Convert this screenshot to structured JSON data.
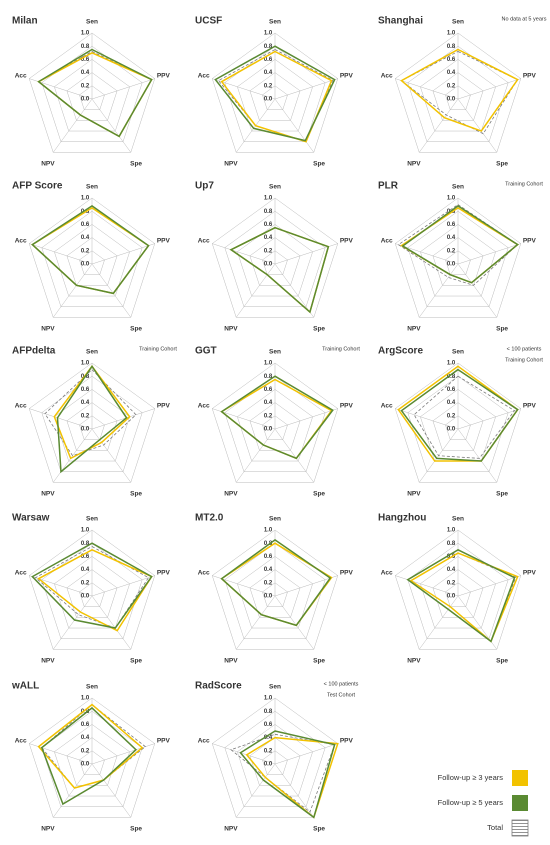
{
  "radar": {
    "categories": [
      "Sen",
      "PPV",
      "Spe",
      "NPV",
      "Acc"
    ],
    "rlim": [
      0,
      1
    ],
    "rticks": [
      {
        "value": 0,
        "label": "0.0"
      },
      0.2,
      0.4,
      0.6,
      0.8,
      {
        "value": 1,
        "label": "1.0"
      }
    ]
  },
  "legend": [
    {
      "name": "Follow-up ≥ 3 years",
      "color": "#f2c200",
      "dashed": false
    },
    {
      "name": "Follow-up ≥ 5 years",
      "color": "#5a8a32",
      "dashed": false
    },
    {
      "name": "Total",
      "color": "#7a7a7a",
      "dashed": true
    }
  ],
  "chart_data": [
    {
      "type": "radar",
      "title": "Milan",
      "series": [
        [
          0.7,
          0.95,
          0.7,
          0.3,
          0.85
        ],
        [
          0.75,
          0.95,
          0.7,
          0.3,
          0.85
        ],
        [
          0.72,
          0.95,
          0.7,
          0.3,
          0.85
        ]
      ]
    },
    {
      "type": "radar",
      "title": "UCSF",
      "series": [
        [
          0.72,
          0.9,
          0.8,
          0.5,
          0.85
        ],
        [
          0.8,
          0.95,
          0.78,
          0.55,
          0.95
        ],
        [
          0.75,
          0.92,
          0.8,
          0.5,
          0.9
        ]
      ]
    },
    {
      "type": "radar",
      "title": "Shanghai",
      "notes": [
        "No data at 5 years"
      ],
      "series": [
        [
          0.75,
          0.95,
          0.6,
          0.35,
          0.9
        ],
        null,
        [
          0.72,
          0.95,
          0.65,
          0.3,
          0.9
        ]
      ]
    },
    {
      "type": "radar",
      "title": "AFP Score",
      "series": [
        [
          0.85,
          0.9,
          0.55,
          0.4,
          0.95
        ],
        [
          0.88,
          0.9,
          0.55,
          0.4,
          0.95
        ],
        [
          0.85,
          0.9,
          0.55,
          0.4,
          0.95
        ]
      ]
    },
    {
      "type": "radar",
      "title": "Up7",
      "series": [
        [
          0.55,
          0.85,
          0.9,
          0.2,
          0.7
        ],
        [
          0.55,
          0.85,
          0.9,
          0.2,
          0.7
        ],
        [
          0.55,
          0.85,
          0.9,
          0.2,
          0.7
        ]
      ]
    },
    {
      "type": "radar",
      "title": "PLR",
      "notes": [
        "Training Cohort"
      ],
      "series": [
        [
          0.85,
          0.95,
          0.35,
          0.2,
          0.9
        ],
        [
          0.88,
          0.95,
          0.35,
          0.2,
          0.88
        ],
        [
          0.9,
          0.95,
          0.4,
          0.25,
          0.95
        ]
      ]
    },
    {
      "type": "radar",
      "title": "AFPdelta",
      "notes": [
        "Training Cohort"
      ],
      "series": [
        [
          0.95,
          0.6,
          0.25,
          0.55,
          0.6
        ],
        [
          0.95,
          0.55,
          0.2,
          0.8,
          0.55
        ],
        [
          0.9,
          0.7,
          0.3,
          0.5,
          0.75
        ]
      ]
    },
    {
      "type": "radar",
      "title": "GGT",
      "notes": [
        "Training Cohort"
      ],
      "series": [
        [
          0.75,
          0.9,
          0.55,
          0.3,
          0.85
        ],
        [
          0.8,
          0.92,
          0.55,
          0.3,
          0.85
        ],
        [
          0.75,
          0.9,
          0.55,
          0.3,
          0.85
        ]
      ]
    },
    {
      "type": "radar",
      "title": "ArgScore",
      "notes": [
        "< 100 patients",
        "Training Cohort"
      ],
      "series": [
        [
          0.95,
          0.95,
          0.6,
          0.6,
          0.95
        ],
        [
          0.9,
          0.95,
          0.6,
          0.55,
          0.9
        ],
        [
          0.8,
          0.9,
          0.55,
          0.5,
          0.7
        ]
      ]
    },
    {
      "type": "radar",
      "title": "Warsaw",
      "series": [
        [
          0.7,
          0.95,
          0.65,
          0.3,
          0.85
        ],
        [
          0.8,
          0.95,
          0.6,
          0.45,
          0.95
        ],
        [
          0.75,
          0.9,
          0.6,
          0.35,
          0.9
        ]
      ]
    },
    {
      "type": "radar",
      "title": "MT2.0",
      "series": [
        [
          0.8,
          0.9,
          0.55,
          0.35,
          0.85
        ],
        [
          0.85,
          0.88,
          0.55,
          0.35,
          0.85
        ],
        [
          0.8,
          0.9,
          0.55,
          0.35,
          0.85
        ]
      ]
    },
    {
      "type": "radar",
      "title": "Hangzhou",
      "series": [
        [
          0.65,
          0.95,
          0.85,
          0.2,
          0.75
        ],
        [
          0.7,
          0.9,
          0.85,
          0.25,
          0.8
        ],
        [
          0.65,
          0.92,
          0.85,
          0.2,
          0.75
        ]
      ]
    },
    {
      "type": "radar",
      "title": "wALL",
      "series": [
        [
          0.9,
          0.8,
          0.3,
          0.45,
          0.85
        ],
        [
          0.85,
          0.7,
          0.3,
          0.75,
          0.8
        ],
        [
          0.9,
          0.85,
          0.3,
          0.45,
          0.8
        ]
      ]
    },
    {
      "type": "radar",
      "title": "RadScore",
      "notes": [
        "< 100 patients",
        "Test Cohort"
      ],
      "series": [
        [
          0.4,
          1.0,
          1.0,
          0.25,
          0.45
        ],
        [
          0.5,
          0.95,
          1.0,
          0.3,
          0.55
        ],
        [
          0.45,
          0.95,
          0.9,
          0.25,
          0.7
        ]
      ]
    }
  ]
}
